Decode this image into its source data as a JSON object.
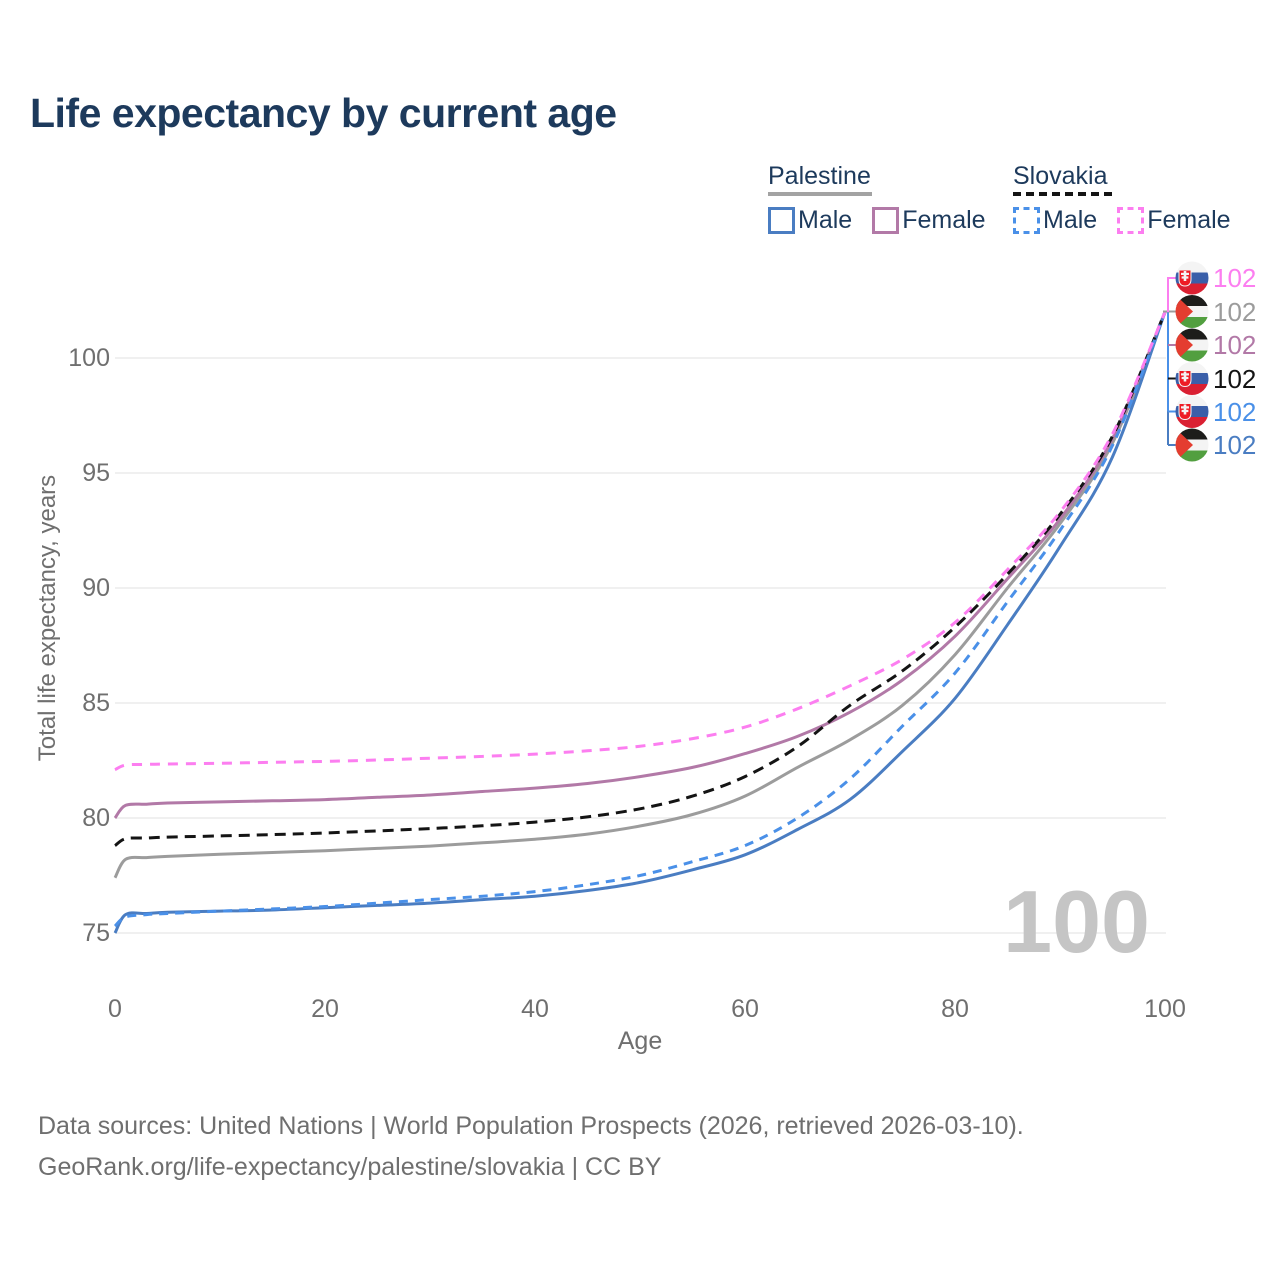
{
  "title": "Life expectancy by current age",
  "legend": {
    "groups": [
      {
        "id": "palestine",
        "label": "Palestine",
        "line_style": "solid",
        "underline_color": "#a3a3a3",
        "items": [
          {
            "id": "palestine-male",
            "label": "Male",
            "color": "#4a7dc2",
            "dashed": false
          },
          {
            "id": "palestine-female",
            "label": "Female",
            "color": "#b279a7",
            "dashed": false
          }
        ]
      },
      {
        "id": "slovakia",
        "label": "Slovakia",
        "line_style": "dashed",
        "underline_color": "#141414",
        "items": [
          {
            "id": "slovakia-male",
            "label": "Male",
            "color": "#4a90e8",
            "dashed": true
          },
          {
            "id": "slovakia-female",
            "label": "Female",
            "color": "#fc7ef0",
            "dashed": true
          }
        ]
      }
    ]
  },
  "axes": {
    "x": {
      "title": "Age",
      "ticks": [
        0,
        20,
        40,
        60,
        80,
        100
      ],
      "range": [
        0,
        100
      ]
    },
    "y": {
      "title": "Total life expectancy, years",
      "ticks": [
        75,
        80,
        85,
        90,
        95,
        100
      ],
      "range": [
        73.5,
        102.5
      ]
    }
  },
  "watermark": "100",
  "footer": {
    "line1": "Data sources: United Nations | World Population Prospects (2026, retrieved 2026-03-10).",
    "line2": "GeoRank.org/life-expectancy/palestine/slovakia | CC BY"
  },
  "colors": {
    "title_text": "#1d3a5c",
    "axis_text": "#6f6f6f",
    "gridline": "#e8e8e8",
    "watermark": "#c5c5c5",
    "palestine_male": "#4a7dc2",
    "palestine_female": "#b279a7",
    "palestine_total": "#9c9c9c",
    "slovakia_male": "#4a90e8",
    "slovakia_female": "#fc7ef0",
    "slovakia_total": "#141414"
  },
  "chart_data": {
    "type": "line",
    "title": "Life expectancy by current age",
    "xlabel": "Age",
    "ylabel": "Total life expectancy, years",
    "xlim": [
      0,
      100
    ],
    "ylim": [
      73.5,
      102.5
    ],
    "grid": "horizontal-only",
    "x": [
      0,
      1,
      3,
      5,
      10,
      15,
      20,
      25,
      30,
      35,
      40,
      45,
      50,
      55,
      60,
      65,
      70,
      75,
      80,
      85,
      90,
      95,
      100
    ],
    "series": [
      {
        "name": "Palestine Total",
        "country": "Palestine",
        "sex": "both",
        "style": "solid",
        "color": "#9c9c9c",
        "end_label": "102",
        "flag": "ps",
        "values": [
          77.4,
          78.2,
          78.28,
          78.33,
          78.42,
          78.5,
          78.58,
          78.68,
          78.78,
          78.92,
          79.08,
          79.3,
          79.65,
          80.15,
          80.95,
          82.2,
          83.4,
          84.9,
          87.1,
          90.0,
          92.8,
          96.3,
          102
        ]
      },
      {
        "name": "Palestine Female",
        "country": "Palestine",
        "sex": "female",
        "style": "solid",
        "color": "#b279a7",
        "end_label": "102",
        "flag": "ps",
        "values": [
          80.0,
          80.55,
          80.6,
          80.65,
          80.7,
          80.75,
          80.8,
          80.9,
          81.0,
          81.15,
          81.3,
          81.5,
          81.8,
          82.2,
          82.8,
          83.55,
          84.6,
          86.0,
          87.9,
          90.4,
          93.0,
          96.5,
          102
        ]
      },
      {
        "name": "Palestine Male",
        "country": "Palestine",
        "sex": "male",
        "style": "solid",
        "color": "#4a7dc2",
        "end_label": "102",
        "flag": "ps",
        "values": [
          75.0,
          75.8,
          75.85,
          75.9,
          75.95,
          76.0,
          76.1,
          76.2,
          76.3,
          76.45,
          76.6,
          76.85,
          77.2,
          77.75,
          78.4,
          79.5,
          80.8,
          82.9,
          85.2,
          88.4,
          91.8,
          95.7,
          102
        ]
      },
      {
        "name": "Slovakia Total",
        "country": "Slovakia",
        "sex": "both",
        "style": "dashed",
        "color": "#141414",
        "end_label": "102",
        "flag": "sk",
        "values": [
          78.8,
          79.1,
          79.13,
          79.17,
          79.22,
          79.28,
          79.35,
          79.44,
          79.54,
          79.66,
          79.82,
          80.05,
          80.4,
          80.95,
          81.8,
          83.1,
          84.9,
          86.4,
          88.3,
          90.6,
          93.2,
          96.6,
          102
        ]
      },
      {
        "name": "Slovakia Male",
        "country": "Slovakia",
        "sex": "male",
        "style": "dashed",
        "color": "#4a90e8",
        "end_label": "102",
        "flag": "sk",
        "values": [
          75.3,
          75.7,
          75.8,
          75.85,
          75.95,
          76.05,
          76.15,
          76.3,
          76.45,
          76.6,
          76.8,
          77.1,
          77.5,
          78.1,
          78.8,
          80.0,
          81.7,
          84.0,
          86.3,
          89.4,
          92.5,
          96.2,
          102
        ]
      },
      {
        "name": "Slovakia Female",
        "country": "Slovakia",
        "sex": "female",
        "style": "dashed",
        "color": "#fc7ef0",
        "end_label": "102",
        "flag": "sk",
        "values": [
          82.1,
          82.3,
          82.33,
          82.35,
          82.38,
          82.42,
          82.46,
          82.52,
          82.6,
          82.68,
          82.78,
          82.92,
          83.12,
          83.45,
          83.95,
          84.75,
          85.75,
          86.9,
          88.5,
          90.8,
          93.3,
          96.7,
          102
        ]
      }
    ],
    "end_label_rows": [
      {
        "series": "Slovakia Female",
        "flag": "sk",
        "value": "102",
        "color": "#fc7ef0"
      },
      {
        "series": "Palestine Total",
        "flag": "ps",
        "value": "102",
        "color": "#9c9c9c"
      },
      {
        "series": "Palestine Female",
        "flag": "ps",
        "value": "102",
        "color": "#b279a7"
      },
      {
        "series": "Slovakia Total",
        "flag": "sk",
        "value": "102",
        "color": "#141414"
      },
      {
        "series": "Slovakia Male",
        "flag": "sk",
        "value": "102",
        "color": "#4a90e8"
      },
      {
        "series": "Palestine Male",
        "flag": "ps",
        "value": "102",
        "color": "#4a7dc2"
      }
    ]
  }
}
